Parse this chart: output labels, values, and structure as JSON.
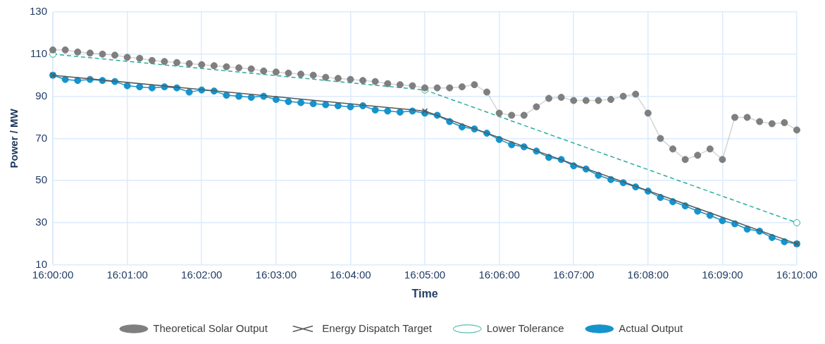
{
  "chart_data": {
    "type": "line",
    "xlabel": "Time",
    "ylabel": "Power / MW",
    "categories": [
      "16:00:00",
      null,
      null,
      null,
      null,
      null,
      "16:01:00",
      null,
      null,
      null,
      null,
      null,
      "16:02:00",
      null,
      null,
      null,
      null,
      null,
      "16:03:00",
      null,
      null,
      null,
      null,
      null,
      "16:04:00",
      null,
      null,
      null,
      null,
      null,
      "16:05:00",
      null,
      null,
      null,
      null,
      null,
      "16:06:00",
      null,
      null,
      null,
      null,
      null,
      "16:07:00",
      null,
      null,
      null,
      null,
      null,
      "16:08:00",
      null,
      null,
      null,
      null,
      null,
      "16:09:00",
      null,
      null,
      null,
      null,
      null,
      "16:10:00"
    ],
    "series": [
      {
        "name": "Theoretical Solar Output",
        "color": "#7f7f7f",
        "marker": "circle",
        "line_style": "solid",
        "values": [
          112,
          112,
          111,
          110.5,
          110,
          109.5,
          108.5,
          108,
          107,
          106.5,
          106,
          105.5,
          105,
          104.5,
          104,
          103.5,
          103,
          102,
          101.5,
          101,
          100.5,
          100,
          99,
          98.5,
          98,
          97.5,
          97,
          96,
          95.5,
          95,
          94,
          94,
          94,
          94.5,
          95.5,
          92,
          82,
          81,
          81,
          85,
          89,
          89.5,
          88,
          88,
          88,
          88.5,
          90,
          91,
          82,
          70,
          65,
          60,
          62,
          65,
          60,
          80,
          80,
          78,
          77,
          77.5,
          74
        ]
      },
      {
        "name": "Energy Dispatch Target",
        "color": "#595959",
        "marker": "cross",
        "line_style": "solid",
        "values": [
          100,
          null,
          null,
          null,
          null,
          null,
          null,
          null,
          null,
          null,
          null,
          null,
          null,
          null,
          null,
          null,
          null,
          null,
          null,
          null,
          null,
          null,
          null,
          null,
          null,
          null,
          null,
          null,
          null,
          null,
          83,
          null,
          null,
          null,
          null,
          null,
          null,
          null,
          null,
          null,
          null,
          null,
          null,
          null,
          null,
          null,
          null,
          null,
          null,
          null,
          null,
          null,
          null,
          null,
          null,
          null,
          null,
          null,
          null,
          null,
          20
        ]
      },
      {
        "name": "Lower Tolerance",
        "color": "#2aaea0",
        "marker": "circle",
        "line_style": "dashed",
        "values": [
          110,
          null,
          null,
          null,
          null,
          null,
          null,
          null,
          null,
          null,
          null,
          null,
          null,
          null,
          null,
          null,
          null,
          null,
          null,
          null,
          null,
          null,
          null,
          null,
          null,
          null,
          null,
          null,
          null,
          null,
          93,
          null,
          null,
          null,
          null,
          null,
          null,
          null,
          null,
          null,
          null,
          null,
          null,
          null,
          null,
          null,
          null,
          null,
          null,
          null,
          null,
          null,
          null,
          null,
          null,
          null,
          null,
          null,
          null,
          null,
          30
        ]
      },
      {
        "name": "Actual Output",
        "color": "#1593cc",
        "marker": "circle",
        "line_style": "solid",
        "values": [
          100,
          98,
          97.5,
          98,
          97.5,
          97,
          95,
          94.5,
          94,
          94.5,
          94,
          92,
          93,
          92.5,
          90.5,
          90,
          89.5,
          90,
          88.5,
          87.5,
          87,
          86.5,
          86,
          85.5,
          85,
          85.5,
          83.5,
          83,
          82.5,
          83,
          82,
          81,
          78,
          75.5,
          74.5,
          72.5,
          69.5,
          67,
          66,
          64,
          61,
          60,
          57,
          55.5,
          52.5,
          50.5,
          49,
          47,
          45,
          42,
          40,
          38,
          35.5,
          33.5,
          31,
          29.5,
          27,
          26,
          23,
          21,
          20
        ]
      }
    ],
    "ylim": [
      10,
      130
    ],
    "yticks": [
      10,
      30,
      50,
      70,
      90,
      110,
      130
    ],
    "grid": true,
    "legend": "bottom"
  }
}
